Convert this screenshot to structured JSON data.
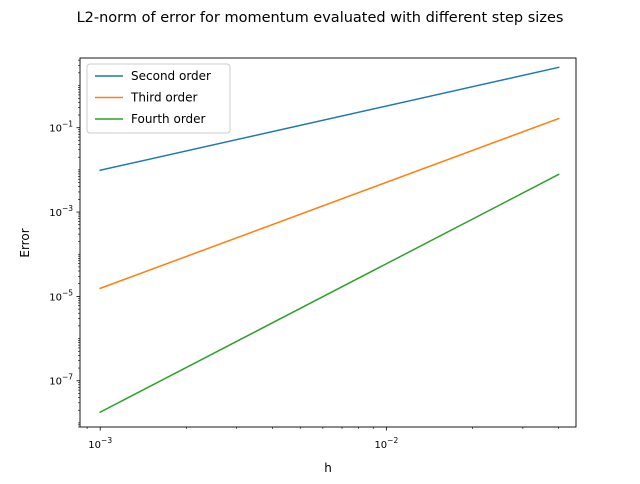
{
  "chart_data": {
    "type": "line",
    "title": "L2-norm of error for momentum evaluated with different step sizes",
    "xlabel": "h",
    "ylabel": "Error",
    "x_scale": "log",
    "y_scale": "log",
    "xlim": [
      0.00085,
      0.046
    ],
    "ylim": [
      8e-09,
      4.5
    ],
    "x_ticks": [
      {
        "value": 0.001,
        "base": "10",
        "exp": "−3"
      },
      {
        "value": 0.01,
        "base": "10",
        "exp": "−2"
      }
    ],
    "y_ticks": [
      {
        "value": 1e-07,
        "base": "10",
        "exp": "−7"
      },
      {
        "value": 1e-05,
        "base": "10",
        "exp": "−5"
      },
      {
        "value": 0.001,
        "base": "10",
        "exp": "−3"
      },
      {
        "value": 0.1,
        "base": "10",
        "exp": "−1"
      }
    ],
    "grid": false,
    "legend_position": "top-left",
    "series": [
      {
        "name": "Second order",
        "color": "#1f77b4",
        "x": [
          0.001,
          0.04
        ],
        "y": [
          0.0098,
          2.7
        ]
      },
      {
        "name": "Third order",
        "color": "#ff7f0e",
        "x": [
          0.001,
          0.04
        ],
        "y": [
          1.55e-05,
          0.165
        ]
      },
      {
        "name": "Fourth order",
        "color": "#2ca02c",
        "x": [
          0.001,
          0.04
        ],
        "y": [
          1.8e-08,
          0.0078
        ]
      }
    ]
  }
}
